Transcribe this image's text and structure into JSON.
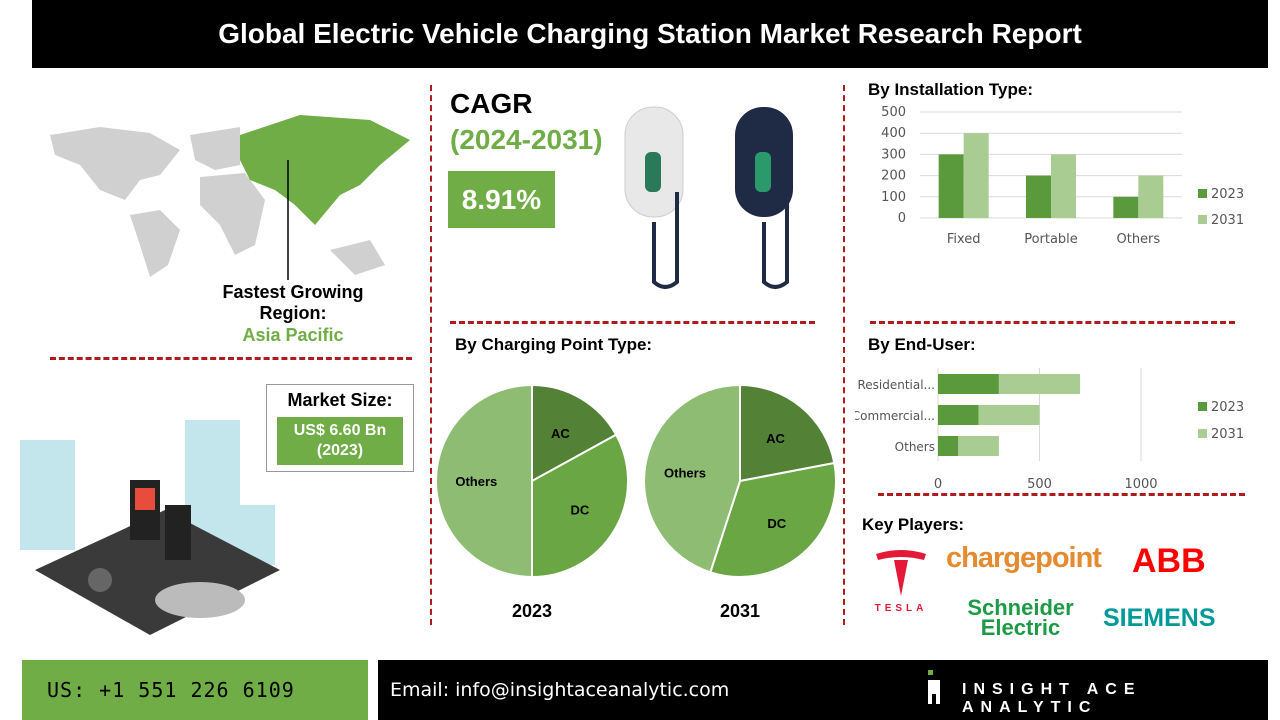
{
  "title": "Global Electric Vehicle Charging Station Market Research Report",
  "region": {
    "label": "Fastest Growing Region:",
    "value": "Asia Pacific"
  },
  "market_size": {
    "label": "Market Size:",
    "value": "US$ 6.60 Bn",
    "year": "(2023)"
  },
  "cagr": {
    "label": "CAGR",
    "period": "(2024-2031)",
    "value": "8.91%"
  },
  "colors": {
    "dark_green": "#5b9a3c",
    "light_green": "#a8cc91",
    "pie_dark": "#538135",
    "pie_mid": "#6aa644",
    "pie_light": "#8fbc73",
    "accent_green": "#70ad47",
    "divider_red": "#b01c1c"
  },
  "chart_data": [
    {
      "type": "bar",
      "title": "By Installation Type:",
      "categories": [
        "Fixed",
        "Portable",
        "Others"
      ],
      "series": [
        {
          "name": "2023",
          "values": [
            300,
            200,
            100
          ]
        },
        {
          "name": "2031",
          "values": [
            400,
            300,
            200
          ]
        }
      ],
      "ylim": [
        0,
        500
      ],
      "yticks": [
        "0",
        "100",
        "200",
        "300",
        "400",
        "500"
      ],
      "grid": true,
      "legend": "right"
    },
    {
      "type": "pie",
      "title": "By Charging Point Type:",
      "charts": [
        {
          "label": "2023",
          "slices": [
            {
              "name": "AC",
              "value": 17
            },
            {
              "name": "DC",
              "value": 33
            },
            {
              "name": "Others",
              "value": 50
            }
          ]
        },
        {
          "label": "2031",
          "slices": [
            {
              "name": "AC",
              "value": 22
            },
            {
              "name": "DC",
              "value": 33
            },
            {
              "name": "Others",
              "value": 45
            }
          ]
        }
      ]
    },
    {
      "type": "bar",
      "orientation": "horizontal-stacked",
      "title": "By End-User:",
      "categories": [
        "Residential...",
        "Commercial...",
        "Others"
      ],
      "series": [
        {
          "name": "2023",
          "values": [
            300,
            200,
            100
          ]
        },
        {
          "name": "2031",
          "values": [
            400,
            300,
            200
          ]
        }
      ],
      "xlim": [
        0,
        1000
      ],
      "xticks": [
        "0",
        "500",
        "1000"
      ],
      "grid": true,
      "legend": "right"
    }
  ],
  "key_players": {
    "label": "Key Players:",
    "logos": [
      "TESLA",
      "chargepoint",
      "ABB",
      "Schneider Electric",
      "SIEMENS"
    ]
  },
  "footer": {
    "phone": "US: +1 551 226 6109",
    "email": "Email: info@insightaceanalytic.com",
    "brand": "INSIGHT ACE ANALYTIC"
  }
}
